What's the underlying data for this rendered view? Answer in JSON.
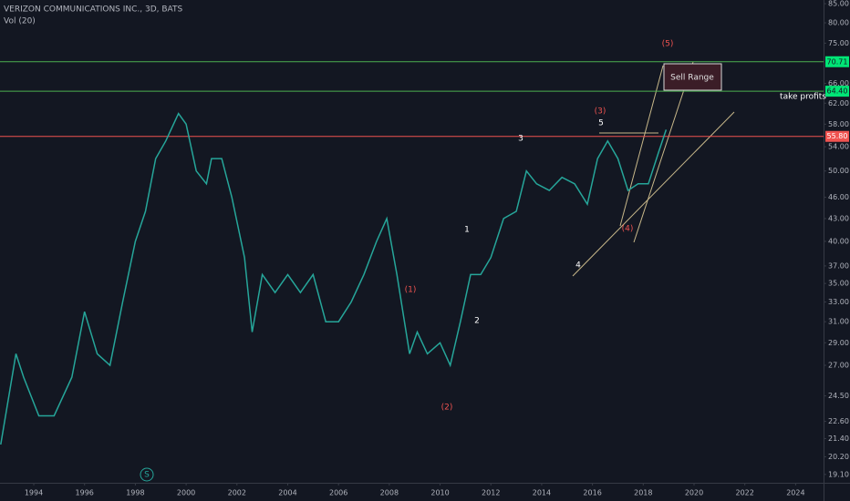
{
  "chart_data": {
    "type": "line",
    "title": "VERIZON COMMUNICATIONS INC., 3D, BATS",
    "subtitle": "Vol (20)",
    "log_scale": true,
    "grid": false,
    "color": "#26a69a",
    "x": [
      1992.7,
      1993.3,
      1993.6,
      1994.2,
      1994.8,
      1995.5,
      1996.0,
      1996.5,
      1997.0,
      1997.5,
      1998.0,
      1998.4,
      1998.8,
      1999.2,
      1999.7,
      2000.0,
      2000.4,
      2000.8,
      2001.0,
      2001.4,
      2001.8,
      2002.3,
      2002.6,
      2003.0,
      2003.5,
      2004.0,
      2004.5,
      2005.0,
      2005.5,
      2006.0,
      2006.5,
      2007.0,
      2007.5,
      2007.9,
      2008.3,
      2008.8,
      2009.1,
      2009.5,
      2010.0,
      2010.4,
      2010.8,
      2011.2,
      2011.6,
      2012.0,
      2012.5,
      2013.0,
      2013.4,
      2013.8,
      2014.3,
      2014.8,
      2015.3,
      2015.8,
      2016.2,
      2016.6,
      2017.0,
      2017.4,
      2017.8,
      2018.2,
      2018.6,
      2018.9
    ],
    "values": [
      21,
      28,
      26,
      23,
      23,
      26,
      32,
      28,
      27,
      33,
      40,
      44,
      52,
      55,
      60,
      58,
      50,
      48,
      52,
      52,
      46,
      38,
      30,
      36,
      34,
      36,
      34,
      36,
      31,
      31,
      33,
      36,
      40,
      43,
      36,
      28,
      30,
      28,
      29,
      27,
      31,
      36,
      36,
      38,
      43,
      44,
      50,
      48,
      47,
      49,
      48,
      45,
      52,
      55,
      52,
      47,
      48,
      48,
      53,
      57
    ],
    "xlim": [
      1992.67,
      2025.1
    ],
    "xticks": [
      1994,
      1996,
      1998,
      2000,
      2002,
      2004,
      2006,
      2008,
      2010,
      2012,
      2014,
      2016,
      2018,
      2020,
      2022,
      2024
    ],
    "ylim": [
      18.6,
      86
    ],
    "yticks": [
      {
        "value": 85,
        "label": "85.00"
      },
      {
        "value": 80,
        "label": "80.00"
      },
      {
        "value": 75,
        "label": "75.00"
      },
      {
        "value": 66,
        "label": "66.00"
      },
      {
        "value": 62,
        "label": "62.00"
      },
      {
        "value": 58,
        "label": "58.00"
      },
      {
        "value": 54,
        "label": "54.00"
      },
      {
        "value": 50,
        "label": "50.00"
      },
      {
        "value": 46,
        "label": "46.00"
      },
      {
        "value": 43,
        "label": "43.00"
      },
      {
        "value": 40,
        "label": "40.00"
      },
      {
        "value": 37,
        "label": "37.00"
      },
      {
        "value": 35,
        "label": "35.00"
      },
      {
        "value": 33,
        "label": "33.00"
      },
      {
        "value": 31,
        "label": "31.00"
      },
      {
        "value": 29,
        "label": "29.00"
      },
      {
        "value": 27,
        "label": "27.00"
      },
      {
        "value": 24.5,
        "label": "24.50"
      },
      {
        "value": 22.6,
        "label": "22.60"
      },
      {
        "value": 21.4,
        "label": "21.40"
      },
      {
        "value": 20.2,
        "label": "20.20"
      },
      {
        "value": 19.1,
        "label": "19.10"
      }
    ],
    "price_lines": [
      {
        "value": 70.71,
        "label": "70.71",
        "color": "#4caf50"
      },
      {
        "value": 64.4,
        "label": "64.40",
        "color": "#4caf50"
      },
      {
        "value": 55.8,
        "label": "55.80",
        "color": "#ef5350"
      }
    ],
    "annotations": [
      "(5)",
      "(3)",
      "(4)",
      "(1)",
      "(2)",
      "1",
      "2",
      "3",
      "4",
      "5"
    ],
    "box_label": "Sell Range",
    "take_profits": "take profits",
    "badge": "S"
  }
}
